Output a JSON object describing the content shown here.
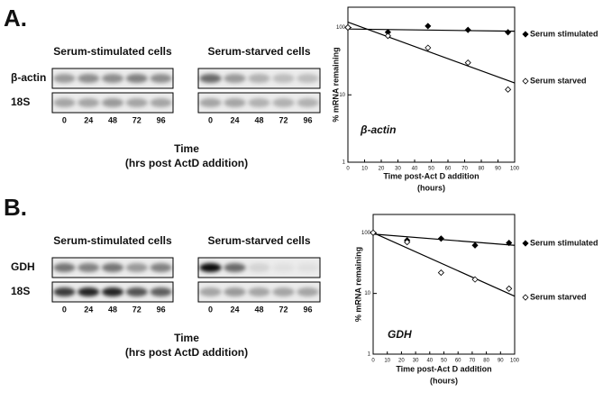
{
  "panels": [
    {
      "label": "A.",
      "groups": [
        "Serum-stimulated cells",
        "Serum-starved cells"
      ],
      "rows": [
        "β-actin",
        "18S"
      ],
      "lanes": [
        "0",
        "24",
        "48",
        "72",
        "96"
      ],
      "time_label": [
        "Time",
        "(hrs post ActD addition)"
      ]
    },
    {
      "label": "B.",
      "groups": [
        "Serum-stimulated cells",
        "Serum-starved cells"
      ],
      "rows": [
        "GDH",
        "18S"
      ],
      "lanes": [
        "0",
        "24",
        "48",
        "72",
        "96"
      ],
      "time_label": [
        "Time",
        "(hrs post ActD addition)"
      ]
    }
  ],
  "chart_data": [
    {
      "type": "scatter",
      "annotation": "β-actin",
      "ylabel": "% mRNA remaining",
      "xlabel": [
        "Time post-Act D addition",
        "(hours)"
      ],
      "yscale": "log",
      "ylim": [
        1,
        200
      ],
      "yticks": [
        1,
        10,
        100
      ],
      "xlim": [
        0,
        100
      ],
      "xticks": [
        0,
        10,
        20,
        30,
        40,
        50,
        60,
        70,
        80,
        90,
        100
      ],
      "x": [
        0,
        24,
        48,
        72,
        96
      ],
      "fit_x": [
        0,
        100
      ],
      "legend": "right",
      "series": [
        {
          "name": "Serum stimulated",
          "marker": "filled",
          "color": "#000000",
          "values": [
            100,
            85,
            105,
            92,
            85
          ],
          "fit_values": [
            95,
            88
          ]
        },
        {
          "name": "Serum starved",
          "marker": "open",
          "color": "#000000",
          "values": [
            100,
            75,
            50,
            30,
            12
          ],
          "fit_values": [
            120,
            15
          ]
        }
      ]
    },
    {
      "type": "scatter",
      "annotation": "GDH",
      "ylabel": "% mRNA remaining",
      "xlabel": [
        "Time post-Act D addition",
        "(hours)"
      ],
      "yscale": "log",
      "ylim": [
        1,
        200
      ],
      "yticks": [
        1,
        10,
        100
      ],
      "xlim": [
        0,
        100
      ],
      "xticks": [
        0,
        10,
        20,
        30,
        40,
        50,
        60,
        70,
        80,
        90,
        100
      ],
      "x": [
        0,
        24,
        48,
        72,
        96
      ],
      "fit_x": [
        0,
        100
      ],
      "legend": "right",
      "series": [
        {
          "name": "Serum stimulated",
          "marker": "filled",
          "color": "#000000",
          "values": [
            100,
            75,
            80,
            62,
            68
          ],
          "fit_values": [
            95,
            62
          ]
        },
        {
          "name": "Serum starved",
          "marker": "open",
          "color": "#000000",
          "values": [
            100,
            70,
            22,
            17,
            12
          ],
          "fit_values": [
            100,
            9
          ]
        }
      ]
    }
  ]
}
